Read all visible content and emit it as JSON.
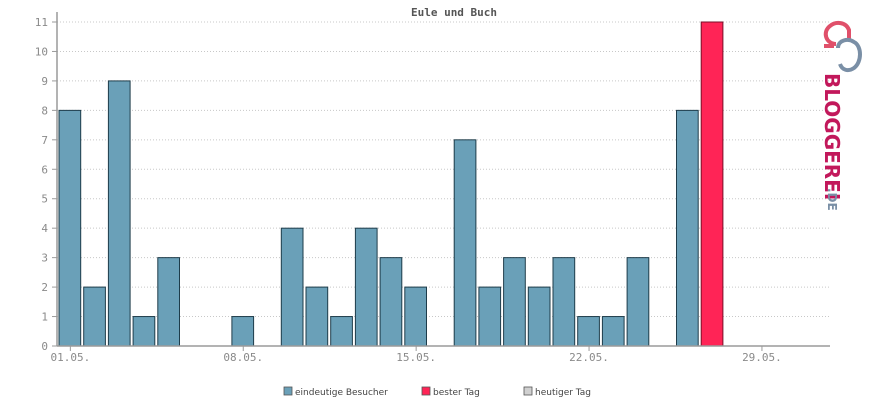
{
  "chart_data": {
    "type": "bar",
    "title": "Eule und Buch",
    "ylim": [
      0,
      11
    ],
    "yticks": [
      0,
      1,
      2,
      3,
      4,
      5,
      6,
      7,
      8,
      9,
      10,
      11
    ],
    "x_tick_labels": [
      "01.05.",
      "08.05.",
      "15.05.",
      "22.05.",
      "29.05."
    ],
    "days": [
      "01.05.",
      "02.05.",
      "03.05.",
      "04.05.",
      "05.05.",
      "06.05.",
      "07.05.",
      "08.05.",
      "09.05.",
      "10.05.",
      "11.05.",
      "12.05.",
      "13.05.",
      "14.05.",
      "15.05.",
      "16.05.",
      "17.05.",
      "18.05.",
      "19.05.",
      "20.05.",
      "21.05.",
      "22.05.",
      "23.05.",
      "24.05.",
      "25.05.",
      "26.05.",
      "27.05.",
      "28.05.",
      "29.05.",
      "30.05.",
      "31.05."
    ],
    "values": [
      8,
      2,
      9,
      1,
      3,
      0,
      0,
      1,
      0,
      4,
      2,
      1,
      4,
      3,
      2,
      0,
      7,
      2,
      3,
      2,
      3,
      1,
      1,
      3,
      0,
      8,
      11,
      null,
      null,
      null,
      null
    ],
    "best_day_index": 26,
    "grid": true,
    "legend": [
      {
        "label": "eindeutige Besucher",
        "color": "#6aa0b8"
      },
      {
        "label": "bester Tag",
        "color": "#ff2456"
      },
      {
        "label": "heutiger Tag",
        "color": "#d0d0d0"
      }
    ],
    "legend_position": "bottom"
  },
  "colors": {
    "bar": "#6aa0b8",
    "bar_stroke": "#1e3c4a",
    "best": "#ff2456",
    "today": "#d0d0d0"
  },
  "logo": {
    "text_main": "BLOGGEREI",
    "text_suffix": ".DE",
    "icon": "bloggerei-logo-icon"
  }
}
